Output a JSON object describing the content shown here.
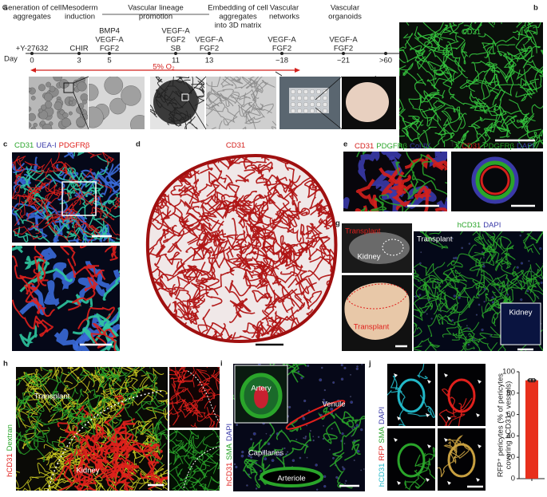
{
  "panels": {
    "a": {
      "letter": "a",
      "stages": [
        [
          "Generation of cell",
          "aggregates"
        ],
        [
          "Mesoderm",
          "induction"
        ],
        [
          "Vascular lineage",
          "promotion"
        ],
        [
          "Embedding of cell",
          "aggregates",
          "into 3D matrix"
        ],
        [
          "Vascular",
          "networks"
        ],
        [
          "Vascular",
          "organoids"
        ]
      ],
      "day_label": "Day",
      "days": [
        "0",
        "3",
        "5",
        "11",
        "13",
        "~18",
        "~21",
        ">60"
      ],
      "factors": [
        [
          "+Y-27632"
        ],
        [
          "CHIR"
        ],
        [
          "BMP4",
          "VEGF-A",
          "FGF2"
        ],
        [
          "VEGF-A",
          "FGF2",
          "SB"
        ],
        [
          "VEGF-A",
          "FGF2"
        ],
        [
          "VEGF-A",
          "FGF2"
        ],
        [
          "VEGF-A",
          "FGF2"
        ]
      ],
      "oxygen": "5% O₂"
    },
    "b": {
      "letter": "b",
      "stains": [
        {
          "text": "CD31",
          "color": "#3fd44a"
        }
      ]
    },
    "c": {
      "letter": "c",
      "stains": [
        {
          "text": "CD31",
          "color": "#2aa52a"
        },
        {
          "text": "UEA-I",
          "color": "#3a3aa8"
        },
        {
          "text": "PDGFRβ",
          "color": "#e0201c"
        }
      ]
    },
    "d": {
      "letter": "d",
      "stains": [
        {
          "text": "CD31",
          "color": "#d4201c"
        }
      ]
    },
    "e": {
      "letter": "e",
      "stains": [
        {
          "text": "CD31",
          "color": "#d4201c"
        },
        {
          "text": "PDGFRβ",
          "color": "#2aa52a"
        },
        {
          "text": "Col IV",
          "color": "#3a3aa8"
        }
      ]
    },
    "f": {
      "letter": "f",
      "stains": [
        {
          "text": "CD31",
          "color": "#d4201c"
        },
        {
          "text": "PDGFRβ",
          "color": "#2aa52a"
        },
        {
          "text": "DAPI",
          "color": "#3a3aa8"
        }
      ]
    },
    "g": {
      "letter": "g",
      "top_transplant": "Transplant",
      "top_kidney": "Kidney",
      "bottom_transplant": "Transplant",
      "stains": [
        {
          "text": "hCD31",
          "color": "#2aa52a"
        },
        {
          "text": "DAPI",
          "color": "#3a3aa8"
        }
      ],
      "right_transplant": "Transplant",
      "inset_kidney": "Kidney"
    },
    "h": {
      "letter": "h",
      "stains": [
        {
          "text": "hCD31",
          "color": "#e0201c"
        },
        {
          "text": "Dextran",
          "color": "#2aa52a"
        }
      ],
      "transplant": "Transplant",
      "kidney": "Kidney"
    },
    "i": {
      "letter": "i",
      "stains": [
        {
          "text": "hCD31",
          "color": "#e0201c"
        },
        {
          "text": "SMA",
          "color": "#2aa52a"
        },
        {
          "text": "DAPI",
          "color": "#3a3aa8"
        }
      ],
      "artery": "Artery",
      "venule": "Venule",
      "capillaries": "Capillaries",
      "arteriole": "Arteriole"
    },
    "j": {
      "letter": "j",
      "stains": [
        {
          "text": "hCD31",
          "color": "#22b8c8"
        },
        {
          "text": "RFP",
          "color": "#e0201c"
        },
        {
          "text": "SMA",
          "color": "#2aa52a"
        },
        {
          "text": "DAPI",
          "color": "#3a3aa8"
        }
      ],
      "chart": {
        "type": "bar",
        "ylabel": [
          "RFP⁺ pericytes (% of pericytes",
          "covering hCD31⁺ vessels)"
        ],
        "ylim": [
          0,
          100
        ],
        "yticks": [
          0,
          20,
          40,
          60,
          80,
          100
        ],
        "values": [
          92
        ],
        "errors": [
          1.5
        ],
        "color": "#e8301c"
      }
    }
  }
}
